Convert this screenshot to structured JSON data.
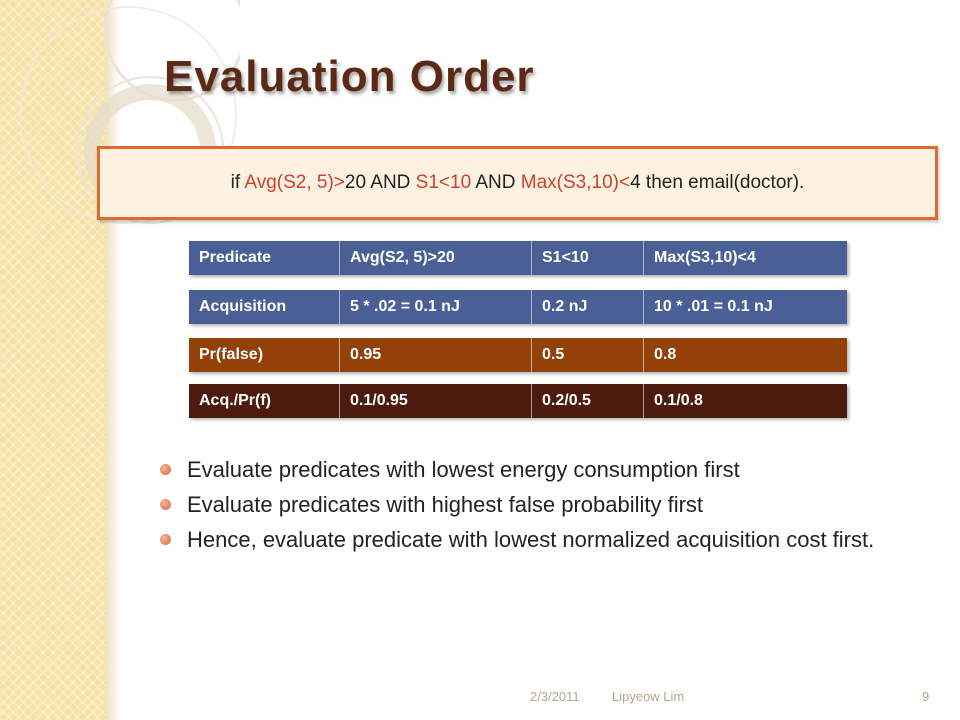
{
  "slide": {
    "title": "Evaluation Order",
    "query": {
      "parts": [
        {
          "text": "if ",
          "hl": false
        },
        {
          "text": "Avg(S2, 5)>",
          "hl": true
        },
        {
          "text": "20 AND ",
          "hl": false
        },
        {
          "text": "S1<10",
          "hl": true
        },
        {
          "text": " AND ",
          "hl": false
        },
        {
          "text": "Max(S3,10)<",
          "hl": true
        },
        {
          "text": "4 then email(doctor).",
          "hl": false
        }
      ],
      "highlight_color": "#d0402a",
      "border_color": "#e06a2c"
    },
    "table": {
      "rows": [
        {
          "cells": [
            "Predicate",
            "Avg(S2, 5)>20",
            "S1<10",
            "Max(S3,10)<4"
          ],
          "color": "#4a5f95"
        },
        {
          "cells": [
            "Acquisition",
            "5 * .02 = 0.1 nJ",
            "0.2 nJ",
            "10 * .01 = 0.1 nJ"
          ],
          "color": "#4a5f95"
        },
        {
          "cells": [
            "Pr(false)",
            "0.95",
            "0.5",
            "0.8"
          ],
          "color": "#944009"
        },
        {
          "cells": [
            "Acq./Pr(f)",
            "0.1/0.95",
            "0.2/0.5",
            "0.1/0.8"
          ],
          "color": "#4d1b0d"
        }
      ]
    },
    "bullets": [
      "Evaluate predicates with lowest energy consumption first",
      "Evaluate predicates with highest false probability first",
      "Hence, evaluate predicate with lowest normalized acquisition cost first."
    ],
    "footer": {
      "date": "2/3/2011",
      "author": "Lipyeow Lim",
      "page": "9"
    },
    "colors": {
      "title": "#5b2a17",
      "bullet_dot": "#d0683a",
      "band": "#f6e2a6"
    }
  }
}
